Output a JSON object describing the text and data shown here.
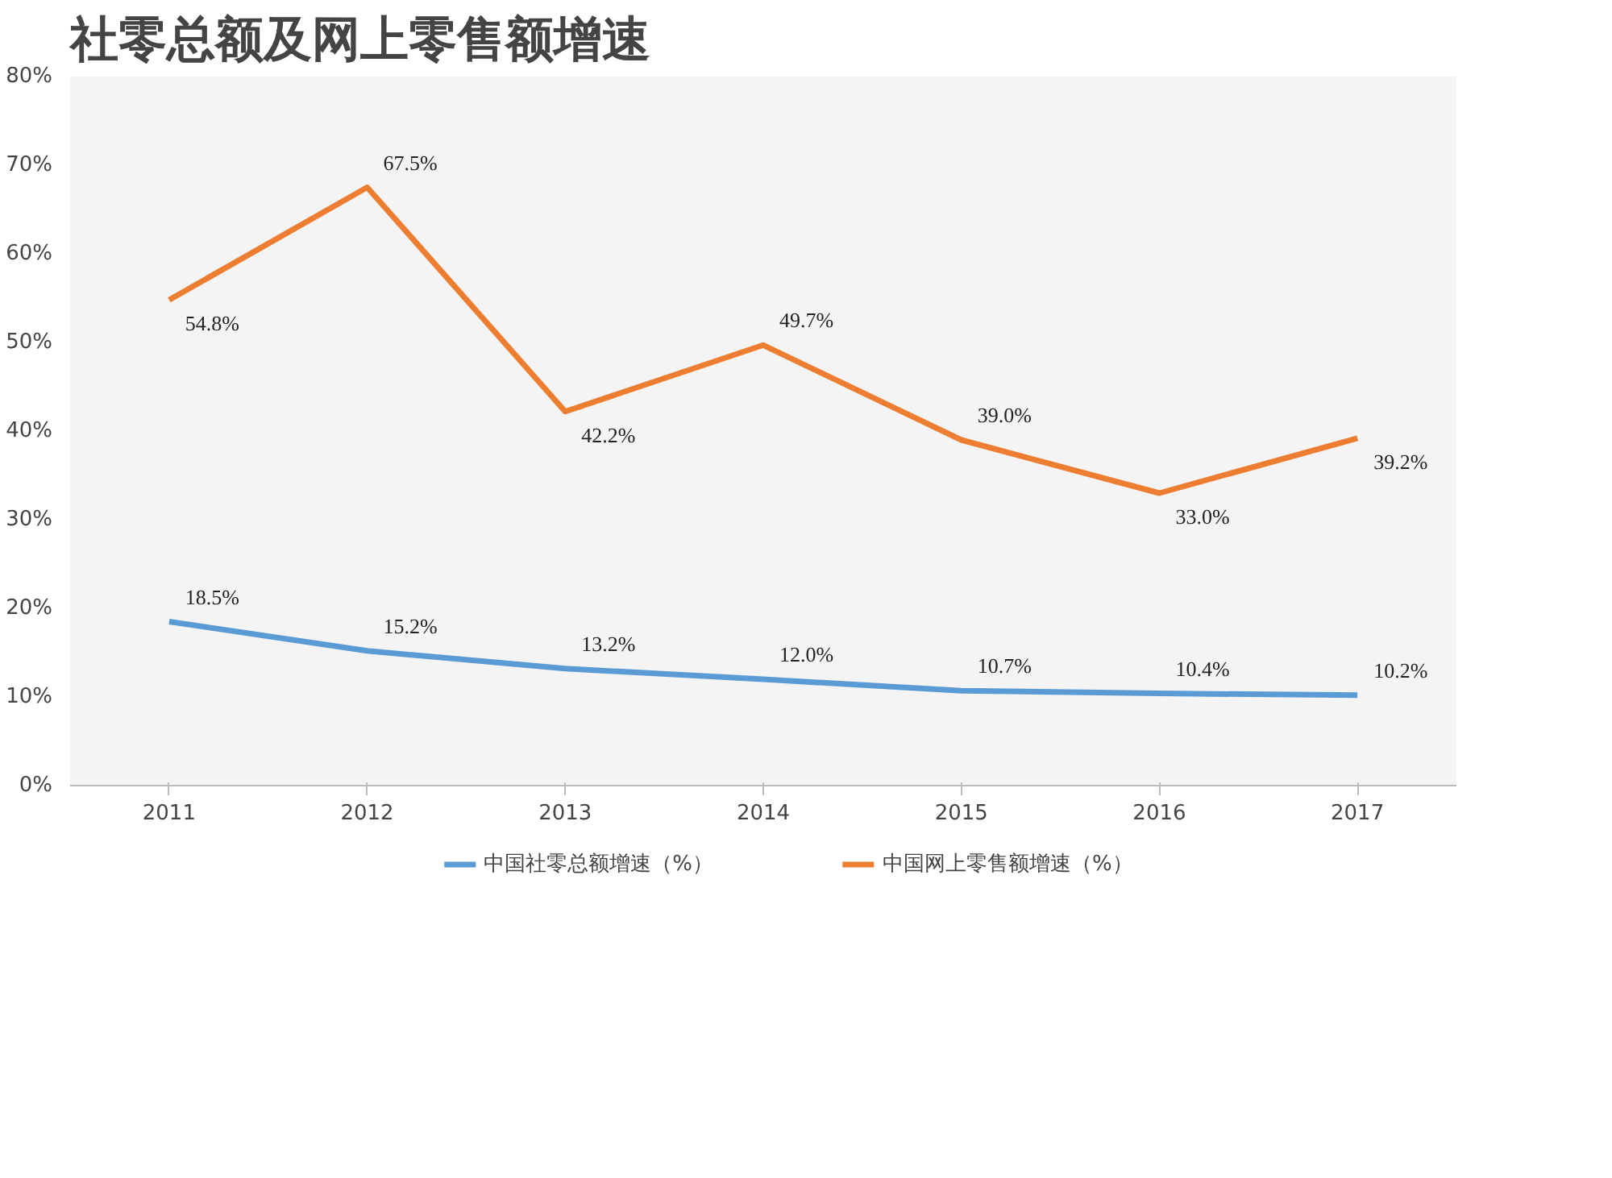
{
  "chart_data": {
    "type": "line",
    "title": "社零总额及网上零售额增速",
    "categories": [
      "2011",
      "2012",
      "2013",
      "2014",
      "2015",
      "2016",
      "2017"
    ],
    "series": [
      {
        "name": "中国社零总额增速（%）",
        "color": "#5b9bd5",
        "values": [
          18.5,
          15.2,
          13.2,
          12.0,
          10.7,
          10.4,
          10.2
        ],
        "value_labels": [
          "18.5%",
          "15.2%",
          "13.2%",
          "12.0%",
          "10.7%",
          "10.4%",
          "10.2%"
        ]
      },
      {
        "name": "中国网上零售额增速（%）",
        "color": "#ed7d31",
        "values": [
          54.8,
          67.5,
          42.2,
          49.7,
          39.0,
          33.0,
          39.2
        ],
        "value_labels": [
          "54.8%",
          "67.5%",
          "42.2%",
          "49.7%",
          "39.0%",
          "33.0%",
          "39.2%"
        ]
      }
    ],
    "ylim": [
      0,
      80
    ],
    "yticks": [
      {
        "value": 0,
        "label": "0%"
      },
      {
        "value": 10,
        "label": "10%"
      },
      {
        "value": 20,
        "label": "20%"
      },
      {
        "value": 30,
        "label": "30%"
      },
      {
        "value": 40,
        "label": "40%"
      },
      {
        "value": 50,
        "label": "50%"
      },
      {
        "value": 60,
        "label": "60%"
      },
      {
        "value": 70,
        "label": "70%"
      },
      {
        "value": 80,
        "label": "80%"
      }
    ],
    "grid": false,
    "legend": "bottom",
    "marker": "none",
    "line_style": "solid"
  }
}
